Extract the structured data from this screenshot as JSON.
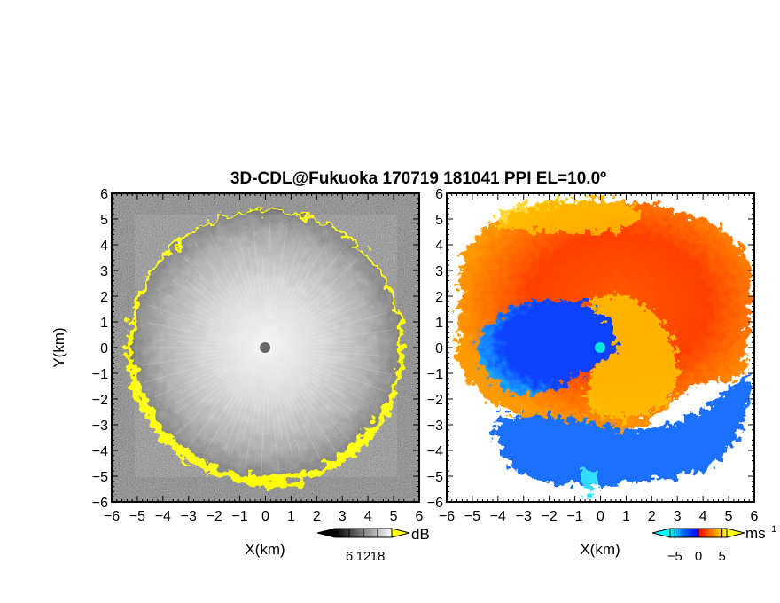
{
  "chart_data": [
    {
      "type": "heatmap",
      "title": "3D-CDL@Fukuoka 170719 181041 PPI EL=10.0º",
      "panel": "left",
      "quantity": "CNR",
      "xlabel": "X(km)",
      "ylabel": "Y(km)",
      "xlim": [
        -6,
        6
      ],
      "ylim": [
        -6,
        6
      ],
      "xticks": [
        "−6",
        "−5",
        "−4",
        "−3",
        "−2",
        "−1",
        "0",
        "1",
        "2",
        "3",
        "4",
        "5",
        "6"
      ],
      "yticks": [
        "6",
        "5",
        "4",
        "3",
        "2",
        "1",
        "0",
        "−1",
        "−2",
        "−3",
        "−4",
        "−5",
        "−6"
      ],
      "colorbar": {
        "unit": "dB",
        "tick_labels": [
          "6",
          "12",
          "18"
        ],
        "ticks": [
          6,
          12,
          18
        ],
        "colors": [
          "#000000",
          "#ffffff"
        ],
        "extend": "both",
        "extend_color_high": "#ffff00"
      },
      "features": {
        "range_ring_km": 5.3,
        "edge_color": "#ffff00",
        "background_noise": "dark gray",
        "center_marker_color": "#555555"
      }
    },
    {
      "type": "heatmap",
      "panel": "right",
      "quantity": "Doppler velocity",
      "xlabel": "X(km)",
      "xlim": [
        -6,
        6
      ],
      "ylim": [
        -6,
        6
      ],
      "xticks": [
        "−6",
        "−5",
        "−4",
        "−3",
        "−2",
        "−1",
        "0",
        "1",
        "2",
        "3",
        "4",
        "5",
        "6"
      ],
      "colorbar": {
        "unit": "ms",
        "unit_exponent": "−1",
        "tick_labels": [
          "−5",
          "0",
          "5"
        ],
        "ticks": [
          -5,
          0,
          5
        ],
        "vmin": -6,
        "vmax": 6,
        "colors": [
          "#00ffff",
          "#0060ff",
          "#0000ff",
          "#ff0000",
          "#ff8000",
          "#ffff00"
        ],
        "extend": "both"
      },
      "features": {
        "max_range_km": 5.9,
        "center_marker_color": "#00e5e5",
        "negative_region": "center and south-west (blue)",
        "positive_region": "north-east and north (red/orange/yellow)"
      }
    }
  ]
}
